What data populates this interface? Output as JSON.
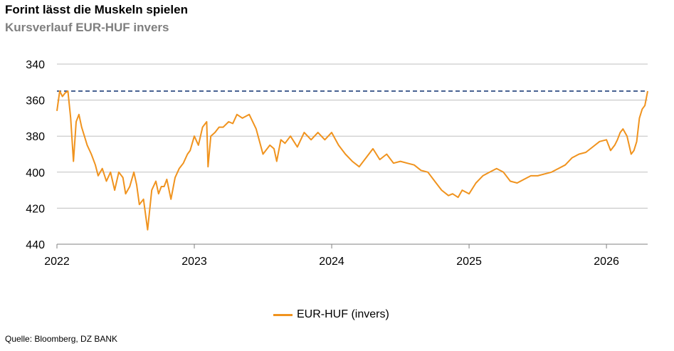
{
  "title": "Forint lässt die Muskeln spielen",
  "subtitle": "Kursverlauf EUR-HUF invers",
  "source": "Quelle: Bloomberg, DZ BANK",
  "colors": {
    "series": "#f0931e",
    "reference_line": "#1f3f7a",
    "grid": "#bfbfbf",
    "axis": "#808080"
  },
  "chart_data": {
    "type": "line",
    "title": "Kursverlauf EUR-HUF invers",
    "xlabel": "",
    "ylabel": "",
    "y_inverted": true,
    "ylim": [
      340,
      440
    ],
    "yticks": [
      340,
      360,
      380,
      400,
      420,
      440
    ],
    "ytick_labels": [
      "340",
      "360",
      "380",
      "400",
      "420",
      "440"
    ],
    "xlim": [
      2022.0,
      2026.3
    ],
    "xticks": [
      2022,
      2023,
      2024,
      2025,
      2026
    ],
    "xtick_labels": [
      "2022",
      "2023",
      "2024",
      "2025",
      "2026"
    ],
    "grid": true,
    "legend_position": "bottom-center",
    "reference_line": {
      "value": 355,
      "style": "dashed"
    },
    "series": [
      {
        "name": "EUR-HUF (invers)",
        "x": [
          2022.0,
          2022.02,
          2022.04,
          2022.06,
          2022.08,
          2022.1,
          2022.12,
          2022.14,
          2022.16,
          2022.18,
          2022.2,
          2022.22,
          2022.25,
          2022.28,
          2022.3,
          2022.33,
          2022.36,
          2022.39,
          2022.42,
          2022.45,
          2022.48,
          2022.5,
          2022.53,
          2022.56,
          2022.58,
          2022.6,
          2022.63,
          2022.66,
          2022.69,
          2022.72,
          2022.74,
          2022.76,
          2022.78,
          2022.8,
          2022.83,
          2022.86,
          2022.89,
          2022.92,
          2022.95,
          2022.97,
          2023.0,
          2023.03,
          2023.06,
          2023.09,
          2023.1,
          2023.12,
          2023.15,
          2023.18,
          2023.21,
          2023.25,
          2023.28,
          2023.31,
          2023.35,
          2023.4,
          2023.45,
          2023.5,
          2023.55,
          2023.58,
          2023.6,
          2023.63,
          2023.66,
          2023.7,
          2023.75,
          2023.8,
          2023.85,
          2023.9,
          2023.95,
          2024.0,
          2024.05,
          2024.1,
          2024.15,
          2024.2,
          2024.25,
          2024.3,
          2024.35,
          2024.4,
          2024.45,
          2024.5,
          2024.55,
          2024.6,
          2024.65,
          2024.7,
          2024.75,
          2024.8,
          2024.85,
          2024.88,
          2024.92,
          2024.95,
          2025.0,
          2025.05,
          2025.1,
          2025.15,
          2025.2,
          2025.25,
          2025.3,
          2025.35,
          2025.4,
          2025.45,
          2025.5,
          2025.55,
          2025.6,
          2025.65,
          2025.7,
          2025.75,
          2025.8,
          2025.85,
          2025.9,
          2025.95,
          2026.0,
          2026.03,
          2026.06,
          2026.08,
          2026.1,
          2026.12,
          2026.15,
          2026.18,
          2026.2,
          2026.22,
          2026.24,
          2026.26,
          2026.28,
          2026.3
        ],
        "values": [
          366,
          355,
          358,
          356,
          355,
          370,
          394,
          372,
          368,
          375,
          380,
          385,
          390,
          396,
          402,
          398,
          405,
          400,
          410,
          400,
          403,
          412,
          408,
          400,
          407,
          418,
          415,
          432,
          410,
          405,
          412,
          408,
          408,
          404,
          415,
          403,
          398,
          395,
          390,
          388,
          380,
          385,
          375,
          372,
          397,
          380,
          378,
          375,
          375,
          372,
          373,
          368,
          370,
          368,
          376,
          390,
          385,
          387,
          394,
          382,
          384,
          380,
          386,
          378,
          382,
          378,
          382,
          378,
          385,
          390,
          394,
          397,
          392,
          387,
          393,
          390,
          395,
          394,
          395,
          396,
          399,
          400,
          405,
          410,
          413,
          412,
          414,
          410,
          412,
          406,
          402,
          400,
          398,
          400,
          405,
          406,
          404,
          402,
          402,
          401,
          400,
          398,
          396,
          392,
          390,
          389,
          386,
          383,
          382,
          388,
          385,
          382,
          378,
          376,
          380,
          390,
          388,
          383,
          370,
          365,
          363,
          355
        ]
      }
    ]
  },
  "legend": {
    "label": "EUR-HUF (invers)"
  }
}
